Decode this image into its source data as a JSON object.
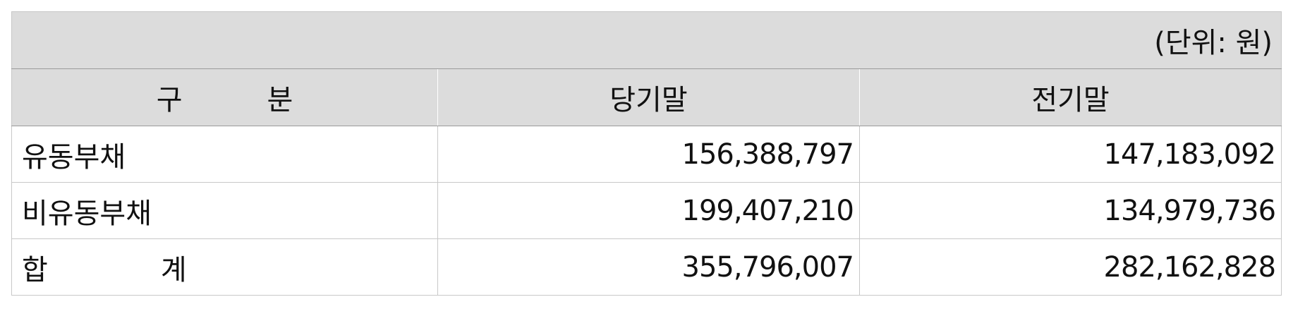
{
  "unit_label": "(단위: 원)",
  "columns": {
    "category_a": "구",
    "category_b": "분",
    "current": "당기말",
    "prior": "전기말"
  },
  "rows": [
    {
      "label": "유동부채",
      "current": "156,388,797",
      "prior": "147,183,092"
    },
    {
      "label": "비유동부채",
      "current": "199,407,210",
      "prior": "134,979,736"
    }
  ],
  "total": {
    "label_a": "합",
    "label_b": "계",
    "current": "355,796,007",
    "prior": "282,162,828"
  }
}
